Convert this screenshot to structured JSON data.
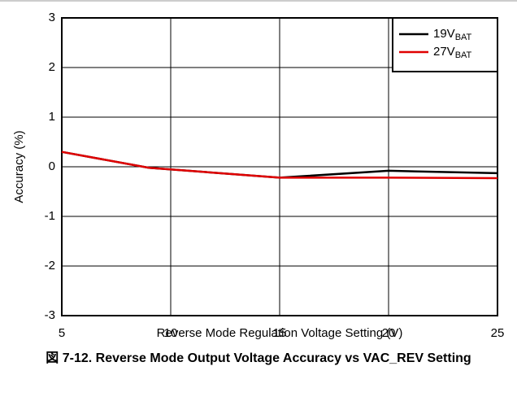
{
  "chart_data": {
    "type": "line",
    "caption": "図 7-12. Reverse Mode Output Voltage Accuracy vs VAC_REV Setting",
    "xlabel": "Reverse Mode Regulation Voltage Setting (V)",
    "ylabel": "Accuracy (%)",
    "x": [
      5,
      9,
      15,
      20,
      25
    ],
    "series": [
      {
        "name": "19V",
        "name_subscript": "BAT",
        "color": "#000000",
        "values": [
          0.3,
          -0.02,
          -0.22,
          -0.08,
          -0.13
        ]
      },
      {
        "name": "27V",
        "name_subscript": "BAT",
        "color": "#e00000",
        "values": [
          0.3,
          -0.02,
          -0.22,
          -0.22,
          -0.23
        ]
      }
    ],
    "xlim": [
      5,
      25
    ],
    "xticks": [
      5,
      10,
      15,
      20,
      25
    ],
    "ylim": [
      -3,
      3
    ],
    "yticks": [
      -3,
      -2,
      -1,
      0,
      1,
      2,
      3
    ],
    "grid": true,
    "legend": "upper right"
  }
}
